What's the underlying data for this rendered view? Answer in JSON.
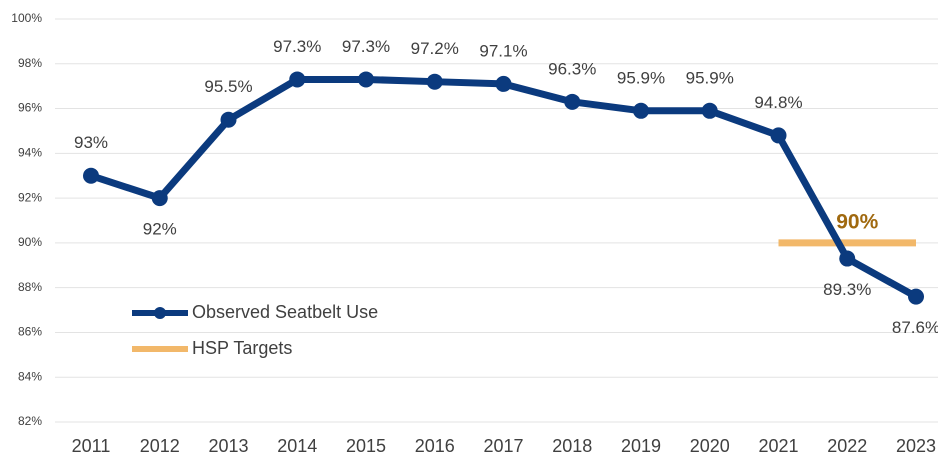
{
  "chart_data": {
    "type": "line",
    "categories": [
      "2011",
      "2012",
      "2013",
      "2014",
      "2015",
      "2016",
      "2017",
      "2018",
      "2019",
      "2020",
      "2021",
      "2022",
      "2023"
    ],
    "series": [
      {
        "name": "Observed Seatbelt Use",
        "color": "#0b3a7e",
        "values": [
          93,
          92,
          95.5,
          97.3,
          97.3,
          97.2,
          97.1,
          96.3,
          95.9,
          95.9,
          94.8,
          89.3,
          87.6
        ],
        "value_labels": [
          "93%",
          "92%",
          "95.5%",
          "97.3%",
          "97.3%",
          "97.2%",
          "97.1%",
          "96.3%",
          "95.9%",
          "95.9%",
          "94.8%",
          "89.3%",
          "87.6%"
        ]
      },
      {
        "name": "HSP Targets",
        "color": "#f2b86a",
        "values": [
          null,
          null,
          null,
          null,
          null,
          null,
          null,
          null,
          null,
          null,
          90,
          90,
          90
        ],
        "value_labels": [
          null,
          null,
          null,
          null,
          null,
          null,
          null,
          null,
          null,
          null,
          null,
          "90%",
          null
        ]
      }
    ],
    "ylim": [
      82,
      100
    ],
    "yticks": [
      {
        "value": 82,
        "label": "82%"
      },
      {
        "value": 84,
        "label": "84%"
      },
      {
        "value": 86,
        "label": "86%"
      },
      {
        "value": 88,
        "label": "88%"
      },
      {
        "value": 90,
        "label": "90%"
      },
      {
        "value": 92,
        "label": "92%"
      },
      {
        "value": 94,
        "label": "94%"
      },
      {
        "value": 96,
        "label": "96%"
      },
      {
        "value": 98,
        "label": "98%"
      },
      {
        "value": 100,
        "label": "100%"
      }
    ],
    "grid": true,
    "legend": "left"
  }
}
